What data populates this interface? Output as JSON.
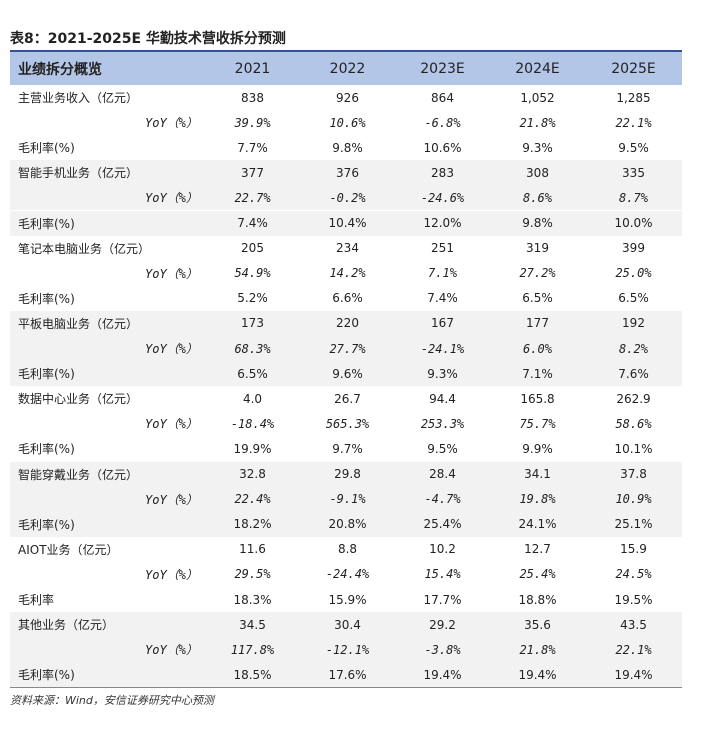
{
  "title": "表8：2021-2025E 华勤技术营收拆分预测",
  "table": {
    "header": [
      "业绩拆分概览",
      "2021",
      "2022",
      "2023E",
      "2024E",
      "2025E"
    ],
    "rows": [
      [
        "主营业务收入（亿元）",
        "838",
        "926",
        "864",
        "1,052",
        "1,285"
      ],
      [
        "YoY（%）",
        "39.9%",
        "10.6%",
        "-6.8%",
        "21.8%",
        "22.1%"
      ],
      [
        "毛利率(%)",
        "7.7%",
        "9.8%",
        "10.6%",
        "9.3%",
        "9.5%"
      ],
      [
        "智能手机业务（亿元）",
        "377",
        "376",
        "283",
        "308",
        "335"
      ],
      [
        "YoY（%）",
        "22.7%",
        "-0.2%",
        "-24.6%",
        "8.6%",
        "8.7%"
      ],
      [
        "毛利率(%)",
        "7.4%",
        "10.4%",
        "12.0%",
        "9.8%",
        "10.0%"
      ],
      [
        "笔记本电脑业务（亿元）",
        "205",
        "234",
        "251",
        "319",
        "399"
      ],
      [
        "YoY（%）",
        "54.9%",
        "14.2%",
        "7.1%",
        "27.2%",
        "25.0%"
      ],
      [
        "毛利率(%)",
        "5.2%",
        "6.6%",
        "7.4%",
        "6.5%",
        "6.5%"
      ],
      [
        "平板电脑业务（亿元）",
        "173",
        "220",
        "167",
        "177",
        "192"
      ],
      [
        "YoY（%）",
        "68.3%",
        "27.7%",
        "-24.1%",
        "6.0%",
        "8.2%"
      ],
      [
        "毛利率(%)",
        "6.5%",
        "9.6%",
        "9.3%",
        "7.1%",
        "7.6%"
      ],
      [
        "数据中心业务（亿元）",
        "4.0",
        "26.7",
        "94.4",
        "165.8",
        "262.9"
      ],
      [
        "YoY（%）",
        "-18.4%",
        "565.3%",
        "253.3%",
        "75.7%",
        "58.6%"
      ],
      [
        "毛利率(%)",
        "19.9%",
        "9.7%",
        "9.5%",
        "9.9%",
        "10.1%"
      ],
      [
        "智能穿戴业务（亿元）",
        "32.8",
        "29.8",
        "28.4",
        "34.1",
        "37.8"
      ],
      [
        "YoY（%）",
        "22.4%",
        "-9.1%",
        "-4.7%",
        "19.8%",
        "10.9%"
      ],
      [
        "毛利率(%)",
        "18.2%",
        "20.8%",
        "25.4%",
        "24.1%",
        "25.1%"
      ],
      [
        "AIOT业务（亿元）",
        "11.6",
        "8.8",
        "10.2",
        "12.7",
        "15.9"
      ],
      [
        "YoY（%）",
        "29.5%",
        "-24.4%",
        "15.4%",
        "25.4%",
        "24.5%"
      ],
      [
        "毛利率",
        "18.3%",
        "15.9%",
        "17.7%",
        "18.8%",
        "19.5%"
      ],
      [
        "其他业务（亿元）",
        "34.5",
        "30.4",
        "29.2",
        "35.6",
        "43.5"
      ],
      [
        "YoY（%）",
        "117.8%",
        "-12.1%",
        "-3.8%",
        "21.8%",
        "22.1%"
      ],
      [
        "毛利率(%)",
        "18.5%",
        "17.6%",
        "19.4%",
        "19.4%",
        "19.4%"
      ]
    ]
  },
  "source": "资料来源：Wind，安信证券研究中心预测"
}
